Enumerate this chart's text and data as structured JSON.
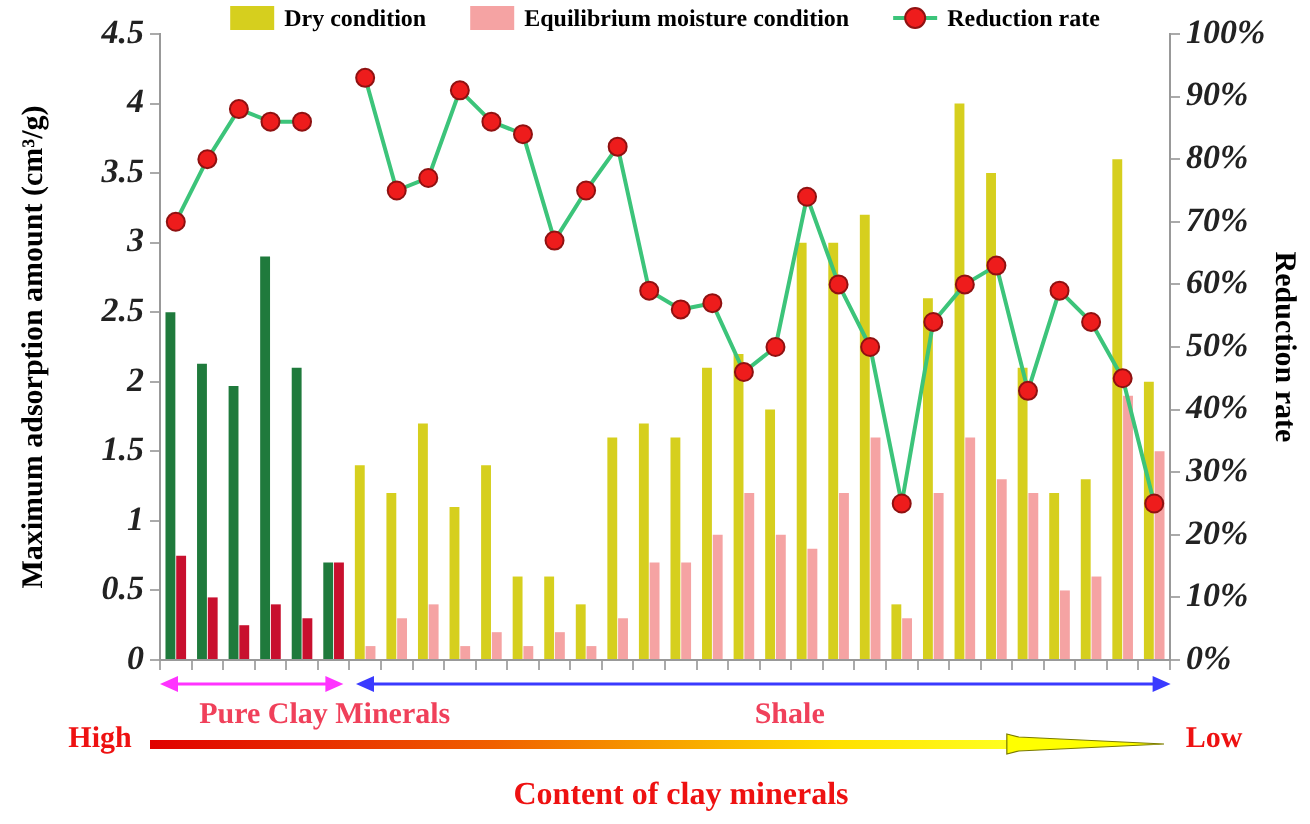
{
  "chart_data": {
    "type": "bar",
    "ylabel": "Maximum adsorption amount (cm³/g)",
    "y2label": "Reduction rate",
    "xlabel": "Content of clay minerals",
    "annotations": [
      "Pure Clay Minerals",
      "Shale",
      "High",
      "Low"
    ],
    "categories": [
      null,
      null,
      null,
      null,
      null,
      null,
      null,
      null,
      null,
      null,
      null,
      null,
      null,
      null,
      null,
      null,
      null,
      null,
      null,
      null,
      null,
      null,
      null,
      null,
      null,
      null,
      null,
      null,
      null,
      null,
      null,
      null
    ],
    "series": [
      {
        "name": "Dry condition",
        "color": "#d6cf1e",
        "colors": [
          "#1f7a3c",
          "#1f7a3c",
          "#1f7a3c",
          "#1f7a3c",
          "#1f7a3c",
          "#1f7a3c",
          "#d6cf1e",
          "#d6cf1e",
          "#d6cf1e",
          "#d6cf1e",
          "#d6cf1e",
          "#d6cf1e",
          "#d6cf1e",
          "#d6cf1e",
          "#d6cf1e",
          "#d6cf1e",
          "#d6cf1e",
          "#d6cf1e",
          "#d6cf1e",
          "#d6cf1e",
          "#d6cf1e",
          "#d6cf1e",
          "#d6cf1e",
          "#d6cf1e",
          "#d6cf1e",
          "#d6cf1e",
          "#d6cf1e",
          "#d6cf1e",
          "#d6cf1e",
          "#d6cf1e",
          "#d6cf1e",
          "#d6cf1e"
        ],
        "values": [
          2.5,
          2.13,
          1.97,
          2.9,
          2.1,
          0.7,
          1.4,
          1.2,
          1.7,
          1.1,
          1.4,
          0.6,
          0.6,
          0.4,
          1.6,
          1.7,
          1.6,
          2.1,
          2.2,
          1.8,
          3.0,
          3.0,
          3.2,
          0.4,
          2.6,
          4.0,
          3.5,
          2.1,
          1.2,
          1.3,
          3.6,
          2.0
        ]
      },
      {
        "name": "Equilibrium moisture condition",
        "color": "#f5a3a3",
        "colors": [
          "#c8102e",
          "#c8102e",
          "#c8102e",
          "#c8102e",
          "#c8102e",
          "#c8102e",
          "#f5a3a3",
          "#f5a3a3",
          "#f5a3a3",
          "#f5a3a3",
          "#f5a3a3",
          "#f5a3a3",
          "#f5a3a3",
          "#f5a3a3",
          "#f5a3a3",
          "#f5a3a3",
          "#f5a3a3",
          "#f5a3a3",
          "#f5a3a3",
          "#f5a3a3",
          "#f5a3a3",
          "#f5a3a3",
          "#f5a3a3",
          "#f5a3a3",
          "#f5a3a3",
          "#f5a3a3",
          "#f5a3a3",
          "#f5a3a3",
          "#f5a3a3",
          "#f5a3a3",
          "#f5a3a3",
          "#f5a3a3"
        ],
        "values": [
          0.75,
          0.45,
          0.25,
          0.4,
          0.3,
          0.7,
          0.1,
          0.3,
          0.4,
          0.1,
          0.2,
          0.1,
          0.2,
          0.1,
          0.3,
          0.7,
          0.7,
          0.9,
          1.2,
          0.9,
          0.8,
          1.2,
          1.6,
          0.3,
          1.2,
          1.6,
          1.3,
          1.2,
          0.5,
          0.6,
          1.9,
          1.5
        ]
      },
      {
        "name": "Reduction rate",
        "type": "line",
        "axis": "y2",
        "color": "#3cc47a",
        "colors": [
          "#ee1c1c",
          "#ee1c1c",
          "#ee1c1c",
          "#ee1c1c",
          "#ee1c1c",
          "#ee1c1c",
          "#ee1c1c",
          "#ee1c1c",
          "#ee1c1c",
          "#ee1c1c",
          "#ee1c1c",
          "#ee1c1c",
          "#ee1c1c",
          "#ee1c1c",
          "#ee1c1c",
          "#ee1c1c",
          "#ee1c1c",
          "#ee1c1c",
          "#ee1c1c",
          "#ee1c1c",
          "#ee1c1c",
          "#ee1c1c",
          "#ee1c1c",
          "#ee1c1c",
          "#ee1c1c",
          "#ee1c1c",
          "#ee1c1c",
          "#ee1c1c",
          "#ee1c1c",
          "#ee1c1c",
          "#ee1c1c",
          "#ee1c1c"
        ],
        "values": [
          null,
          null,
          null,
          null,
          null,
          null,
          93,
          75,
          77,
          91,
          86,
          84,
          67,
          75,
          82,
          59,
          56,
          57,
          46,
          50,
          74,
          60,
          50,
          25,
          54,
          60,
          63,
          43,
          59,
          54,
          45,
          25
        ]
      },
      {
        "type": "line",
        "axis": "y2",
        "color": "#3cc47a",
        "colors": [
          "#ee1c1c",
          "#ee1c1c",
          "#ee1c1c",
          "#ee1c1c",
          "#ee1c1c",
          "#ee1c1c",
          "#ee1c1c",
          "#ee1c1c",
          "#ee1c1c",
          "#ee1c1c",
          "#ee1c1c",
          "#ee1c1c",
          "#ee1c1c",
          "#ee1c1c",
          "#ee1c1c",
          "#ee1c1c",
          "#ee1c1c",
          "#ee1c1c",
          "#ee1c1c",
          "#ee1c1c",
          "#ee1c1c",
          "#ee1c1c",
          "#ee1c1c",
          "#ee1c1c",
          "#ee1c1c",
          "#ee1c1c",
          "#ee1c1c",
          "#ee1c1c",
          "#ee1c1c",
          "#ee1c1c",
          "#ee1c1c",
          "#ee1c1c"
        ],
        "values": [
          70,
          80,
          88,
          86,
          86,
          null,
          null,
          null,
          null,
          null,
          null,
          null,
          null,
          null,
          null,
          null,
          null,
          null,
          null,
          null,
          null,
          null,
          null,
          null,
          null,
          null,
          null,
          null,
          null,
          null,
          null,
          null
        ]
      }
    ],
    "ylim": [
      0,
      4.5
    ],
    "yticks": [
      0,
      0.5,
      1,
      1.5,
      2,
      2.5,
      3,
      3.5,
      4,
      4.5
    ],
    "y2lim": [
      0,
      100
    ],
    "y2ticks": [
      {
        "value": 0,
        "label": "0%"
      },
      {
        "value": 10,
        "label": "10%"
      },
      {
        "value": 20,
        "label": "20%"
      },
      {
        "value": 30,
        "label": "30%"
      },
      {
        "value": 40,
        "label": "40%"
      },
      {
        "value": 50,
        "label": "50%"
      },
      {
        "value": 60,
        "label": "60%"
      },
      {
        "value": 70,
        "label": "70%"
      },
      {
        "value": 80,
        "label": "80%"
      },
      {
        "value": 90,
        "label": "90%"
      },
      {
        "value": 100,
        "label": "100%"
      }
    ],
    "grid": false,
    "legend": "top",
    "marker": "circle",
    "line_style": "solid"
  }
}
